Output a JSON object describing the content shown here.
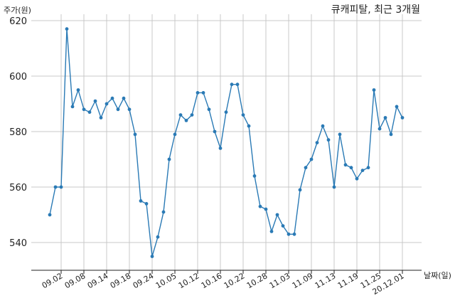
{
  "chart_data": {
    "type": "line",
    "title": "큐캐피탈, 최근 3개월",
    "ylabel": "주가(원)",
    "xlabel": "날짜(일)",
    "ylim": [
      530,
      620
    ],
    "yticks": [
      540,
      560,
      580,
      600,
      620
    ],
    "grid": true,
    "series_color": "#2a7ab5",
    "x": [
      "08.31",
      "09.01",
      "09.02",
      "09.03",
      "09.04",
      "09.07",
      "09.08",
      "09.09",
      "09.10",
      "09.11",
      "09.14",
      "09.15",
      "09.16",
      "09.17",
      "09.18",
      "09.21",
      "09.22",
      "09.23",
      "09.24",
      "09.25",
      "09.28",
      "09.29",
      "10.05",
      "10.06",
      "10.07",
      "10.08",
      "10.12",
      "10.13",
      "10.14",
      "10.15",
      "10.16",
      "10.19",
      "10.20",
      "10.21",
      "10.22",
      "10.23",
      "10.26",
      "10.27",
      "10.28",
      "10.29",
      "10.30",
      "11.02",
      "11.03",
      "11.04",
      "11.05",
      "11.06",
      "11.09",
      "11.10",
      "11.11",
      "11.12",
      "11.13",
      "11.16",
      "11.17",
      "11.18",
      "11.19",
      "11.20",
      "11.23",
      "11.24",
      "11.25",
      "11.26",
      "11.27",
      "11.30",
      "20.12.01"
    ],
    "values": [
      550,
      560,
      560,
      617,
      589,
      595,
      588,
      587,
      591,
      585,
      590,
      592,
      588,
      592,
      588,
      579,
      555,
      554,
      535,
      542,
      551,
      570,
      579,
      586,
      584,
      586,
      594,
      594,
      588,
      580,
      574,
      587,
      597,
      597,
      586,
      582,
      564,
      553,
      552,
      544,
      550,
      546,
      543,
      543,
      559,
      567,
      570,
      576,
      582,
      577,
      560,
      579,
      568,
      567,
      563,
      566,
      567,
      595,
      581,
      585,
      579,
      589,
      585
    ],
    "xtick_labels": [
      "09.02",
      "09.08",
      "09.14",
      "09.18",
      "09.24",
      "10.05",
      "10.12",
      "10.16",
      "10.22",
      "10.28",
      "11.03",
      "11.09",
      "11.13",
      "11.19",
      "11.25",
      "20.12.01"
    ],
    "xtick_indices": [
      2,
      6,
      10,
      14,
      18,
      22,
      26,
      30,
      34,
      38,
      42,
      46,
      50,
      54,
      58,
      62
    ]
  }
}
